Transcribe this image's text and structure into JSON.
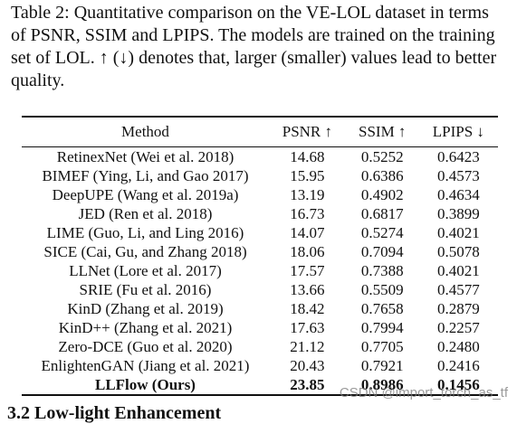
{
  "caption": "Table 2: Quantitative comparison on the VE-LOL dataset in terms of PSNR, SSIM and LPIPS. The models are trained on the training set of LOL. ↑ (↓) denotes that, larger (smaller) values lead to better quality.",
  "table": {
    "headers": [
      "Method",
      "PSNR ↑",
      "SSIM ↑",
      "LPIPS ↓"
    ],
    "rows": [
      [
        "RetinexNet (Wei et al. 2018)",
        "14.68",
        "0.5252",
        "0.6423"
      ],
      [
        "BIMEF (Ying, Li, and Gao 2017)",
        "15.95",
        "0.6386",
        "0.4573"
      ],
      [
        "DeepUPE (Wang et al. 2019a)",
        "13.19",
        "0.4902",
        "0.4634"
      ],
      [
        "JED (Ren et al. 2018)",
        "16.73",
        "0.6817",
        "0.3899"
      ],
      [
        "LIME (Guo, Li, and Ling 2016)",
        "14.07",
        "0.5274",
        "0.4021"
      ],
      [
        "SICE (Cai, Gu, and Zhang 2018)",
        "18.06",
        "0.7094",
        "0.5078"
      ],
      [
        "LLNet (Lore et al. 2017)",
        "17.57",
        "0.7388",
        "0.4021"
      ],
      [
        "SRIE (Fu et al. 2016)",
        "13.66",
        "0.5509",
        "0.4577"
      ],
      [
        "KinD (Zhang et al. 2019)",
        "18.42",
        "0.7658",
        "0.2879"
      ],
      [
        "KinD++ (Zhang et al. 2021)",
        "17.63",
        "0.7994",
        "0.2257"
      ],
      [
        "Zero-DCE (Guo et al. 2020)",
        "21.12",
        "0.7705",
        "0.2480"
      ],
      [
        "EnlightenGAN (Jiang et al. 2021)",
        "20.43",
        "0.7921",
        "0.2416"
      ],
      [
        "LLFlow (Ours)",
        "23.85",
        "0.8986",
        "0.1456"
      ]
    ]
  },
  "watermark": "CSDN @import_torch_as_tf",
  "partial_text": "3.2 Low-light Enhancement"
}
